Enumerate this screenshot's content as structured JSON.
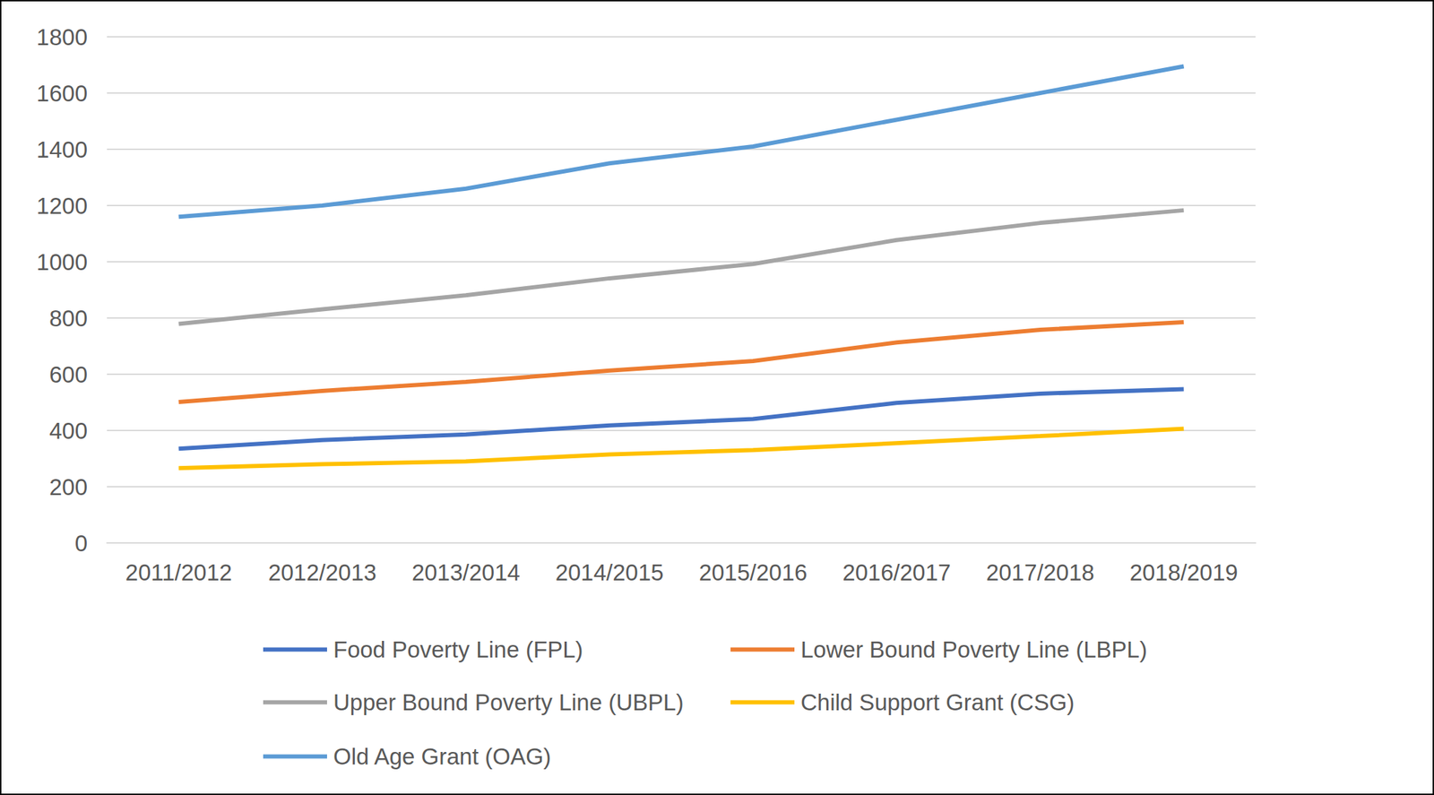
{
  "chart_data": {
    "type": "line",
    "categories": [
      "2011/2012",
      "2012/2013",
      "2013/2014",
      "2014/2015",
      "2015/2016",
      "2016/2017",
      "2017/2018",
      "2018/2019"
    ],
    "series": [
      {
        "name": "Food Poverty Line (FPL)",
        "color": "#4472c4",
        "values": [
          335,
          366,
          386,
          418,
          441,
          498,
          531,
          547
        ]
      },
      {
        "name": "Lower Bound Poverty Line (LBPL)",
        "color": "#ed7d31",
        "values": [
          501,
          541,
          573,
          613,
          647,
          713,
          758,
          785
        ]
      },
      {
        "name": "Upper Bound Poverty Line (UBPL)",
        "color": "#a5a5a5",
        "values": [
          779,
          831,
          881,
          941,
          992,
          1077,
          1138,
          1183
        ]
      },
      {
        "name": "Child Support Grant (CSG)",
        "color": "#ffc000",
        "values": [
          266,
          280,
          290,
          315,
          330,
          355,
          380,
          406
        ]
      },
      {
        "name": "Old Age Grant (OAG)",
        "color": "#5b9bd5",
        "values": [
          1160,
          1200,
          1260,
          1350,
          1410,
          1505,
          1600,
          1695
        ]
      }
    ],
    "ylim": [
      0,
      1800
    ],
    "yticks": [
      0,
      200,
      400,
      600,
      800,
      1000,
      1200,
      1400,
      1600,
      1800
    ],
    "grid": true,
    "legend": "bottom"
  }
}
